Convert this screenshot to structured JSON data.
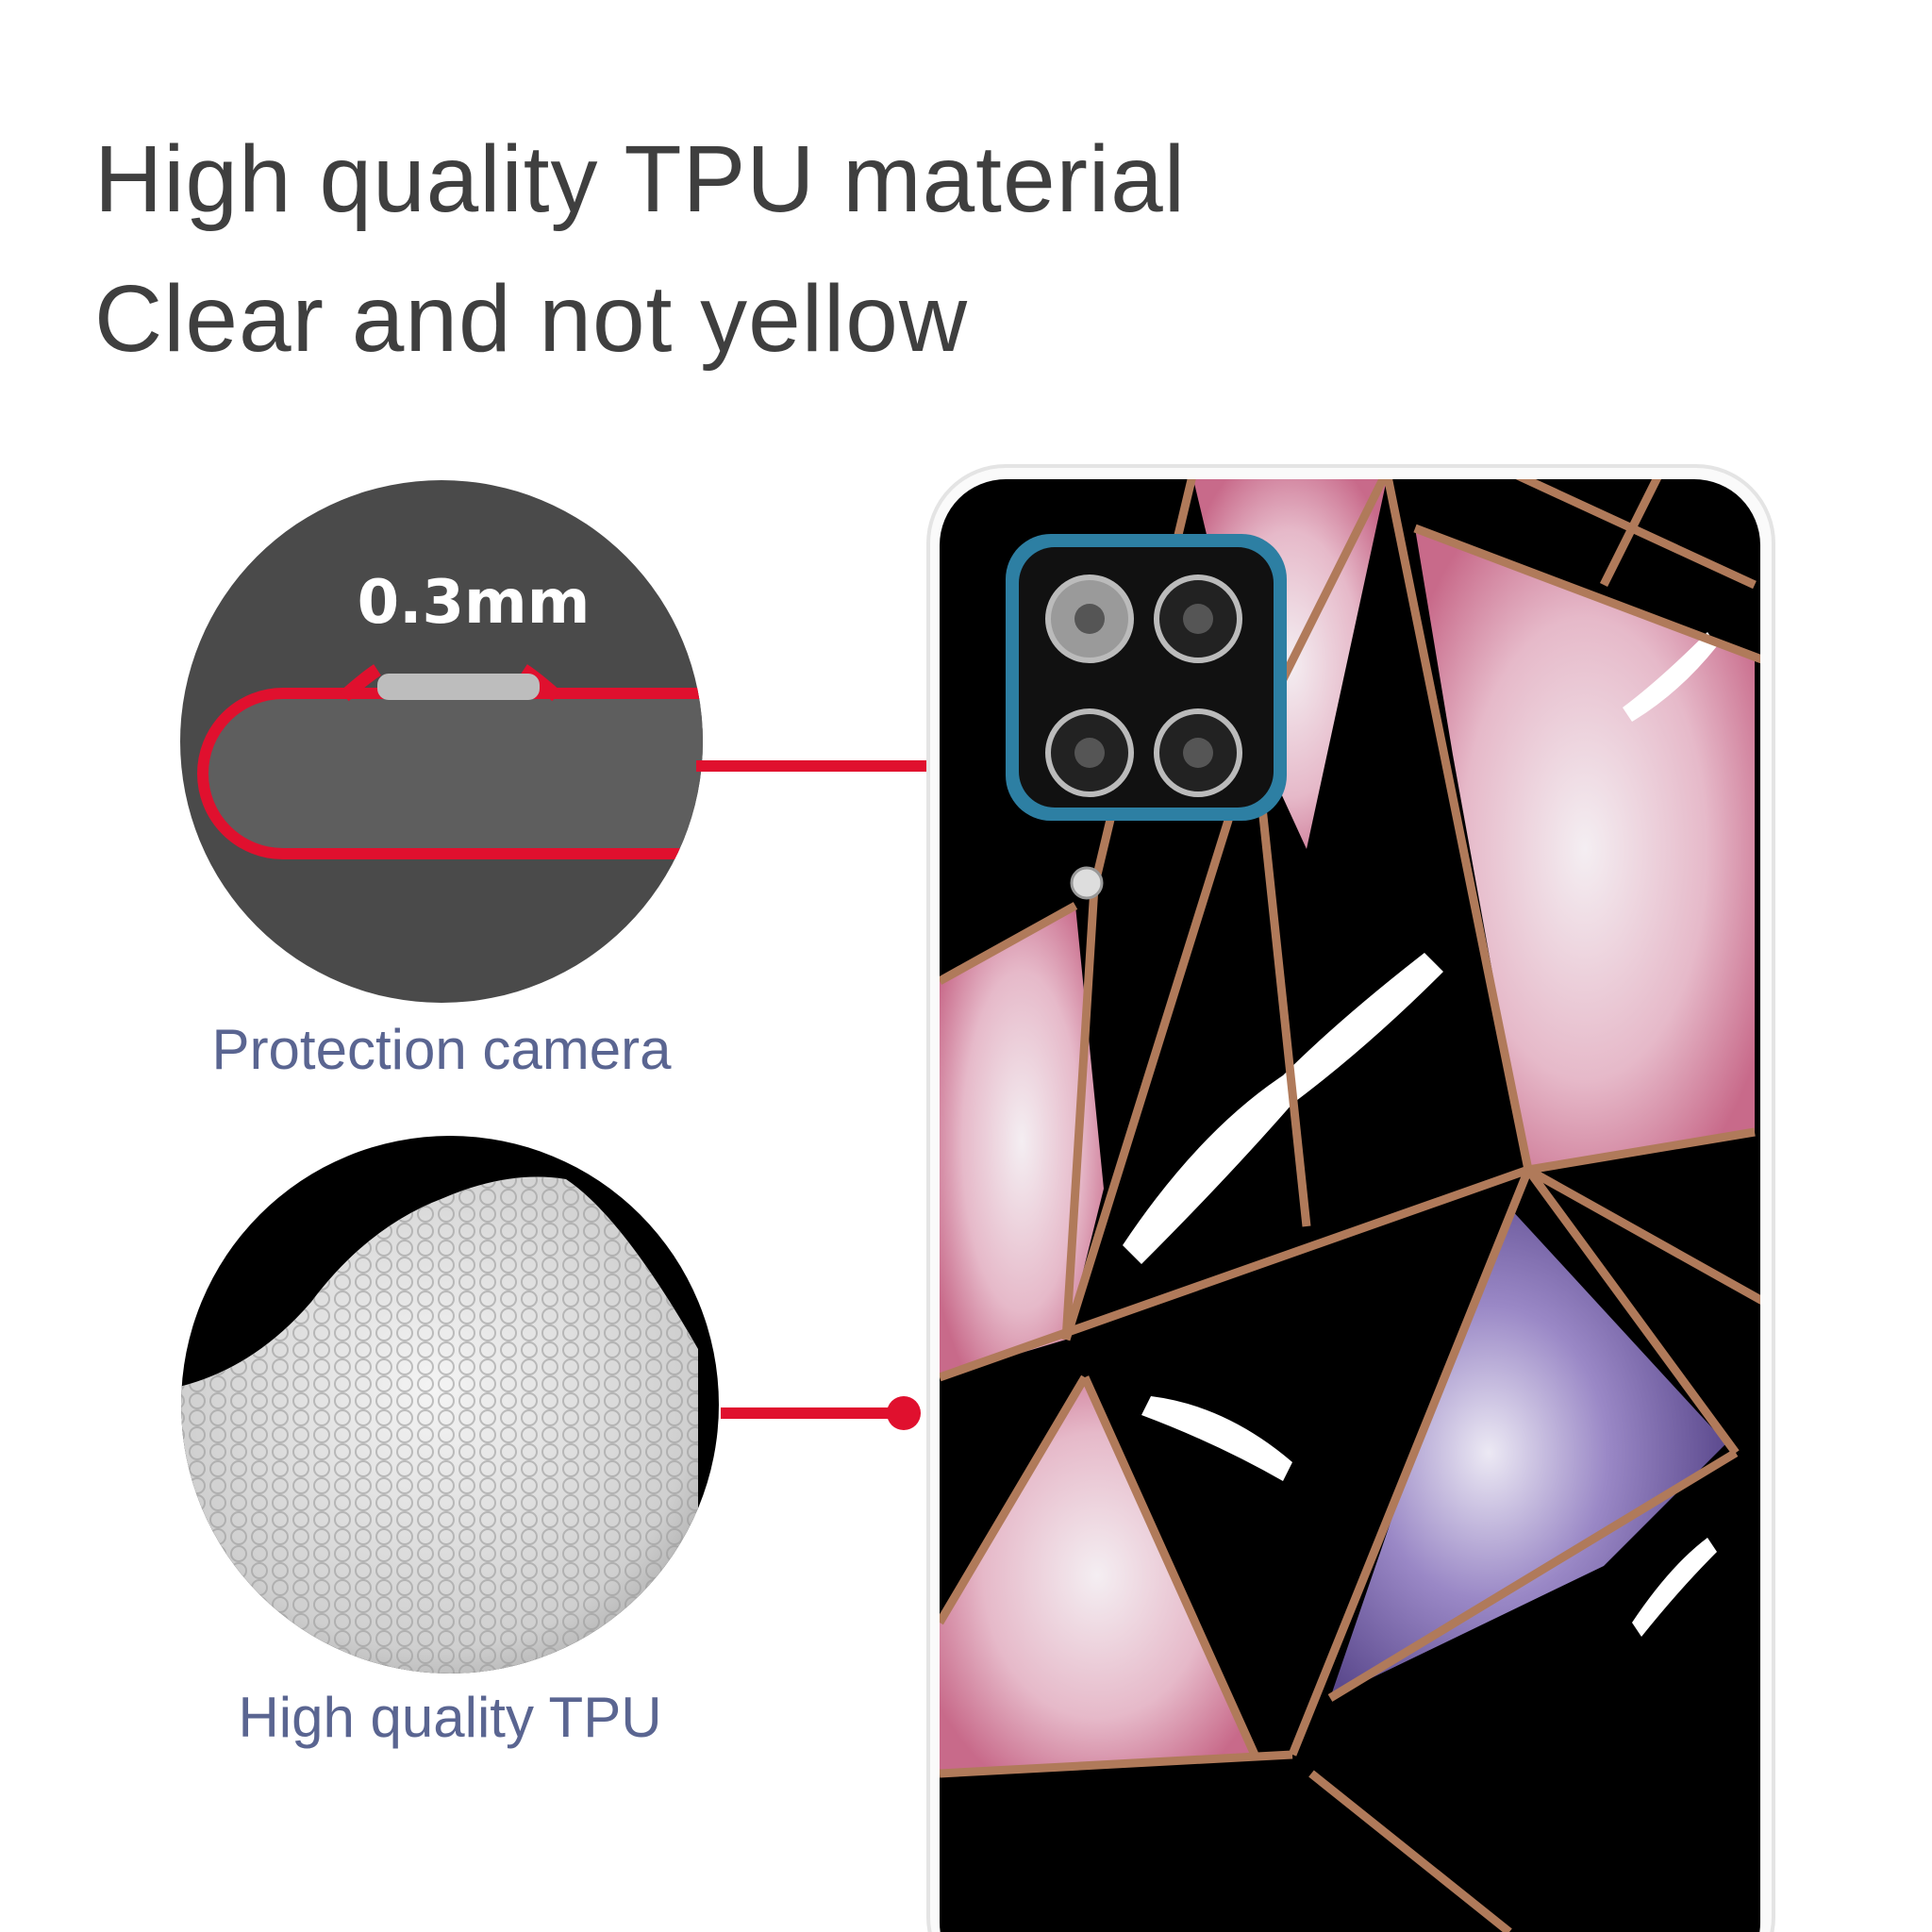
{
  "headline": {
    "line1": "High quality TPU material",
    "line2": "Clear and not yellow"
  },
  "callouts": [
    {
      "badge": "0.3mm",
      "caption": "Protection camera"
    },
    {
      "caption": "High quality TPU"
    }
  ],
  "colors": {
    "pointer": "#e0102e",
    "caption": "#5a6591",
    "camera_frame": "#2d7fa3",
    "marble_lines": "#b07a5a"
  }
}
